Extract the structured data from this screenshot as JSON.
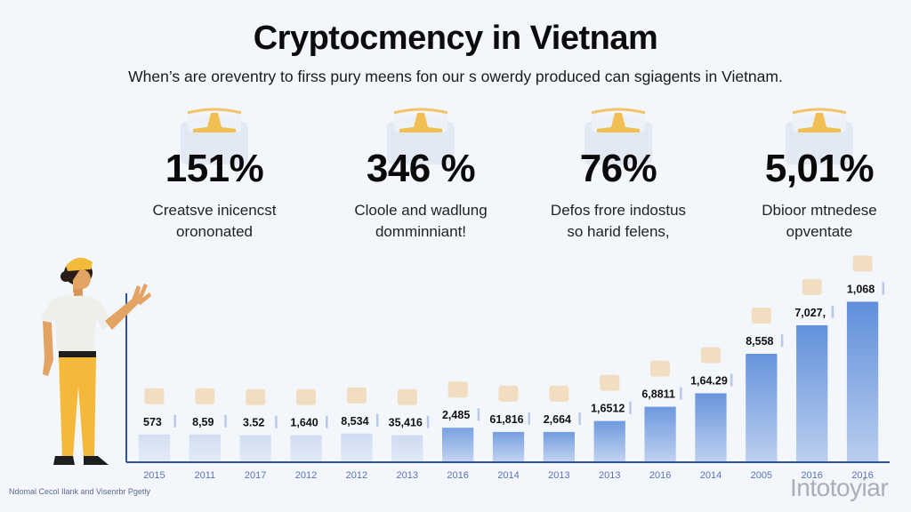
{
  "header": {
    "title": "Cryptocmency in Vietnam",
    "subtitle": "When’s are oreventry to firss pury meens fon our s owerdy produced can sgiagents in Vietnam."
  },
  "stats": [
    {
      "icon": "crypto-stack-icon",
      "value": "151%",
      "desc_line1": "Creatsve inicencst",
      "desc_line2": "orononated"
    },
    {
      "icon": "crypto-stack-icon",
      "value": "346 %",
      "desc_line1": "Cloole and wadlung",
      "desc_line2": "domminniant!"
    },
    {
      "icon": "crypto-stack-icon",
      "value": "76%",
      "desc_line1": "Defos frore indostus",
      "desc_line2": "so harid felens,"
    },
    {
      "icon": "crypto-stack-icon",
      "value": "5,01%",
      "desc_line1": "Dbioor mtnedese",
      "desc_line2": "opventate"
    }
  ],
  "colors": {
    "bar_light": "#d2ddf1",
    "bar_dark": "#5f8fdb",
    "axis": "#2f4fa8",
    "icon_tan": "#f0cfa0",
    "accent_gold": "#f2b843",
    "xlabel": "#5a72b5"
  },
  "chart_data": {
    "type": "bar",
    "title": "",
    "xlabel": "",
    "ylabel": "",
    "categories": [
      "2015",
      "2011",
      "2017",
      "2012",
      "2012",
      "2013",
      "2016",
      "2014",
      "2013",
      "2013",
      "2016",
      "2014",
      "2005",
      "2016",
      "2016"
    ],
    "values": [
      32,
      32,
      31,
      31,
      33,
      31,
      40,
      35,
      35,
      48,
      65,
      81,
      128,
      162,
      190
    ],
    "value_labels": [
      "573",
      "8,59",
      "3.52",
      "1,640",
      "8,534",
      "35,416",
      "2,485",
      "61,816",
      "2,664",
      "1,6512",
      "6,8811",
      "1,64.29",
      "8,558",
      "7,027,",
      "1,068"
    ],
    "bar_icons": [
      "coins-icon",
      "calculator-icon",
      "person-icon",
      "temple-icon",
      "ledger-icon",
      "wallet-icon",
      "coin-icon",
      "cards-icon",
      "bowl-icon",
      "house-icon",
      "growth-chart-icon",
      "atm-icon",
      "tower-icon",
      "medal-icon",
      "shield-icon"
    ],
    "ylim": [
      0,
      200
    ],
    "grid": false,
    "legend": "none"
  },
  "footer": {
    "source": "Ndomal Cecol Ilank and Visenrbr Pgetly",
    "watermark": "Intotoyiar"
  }
}
